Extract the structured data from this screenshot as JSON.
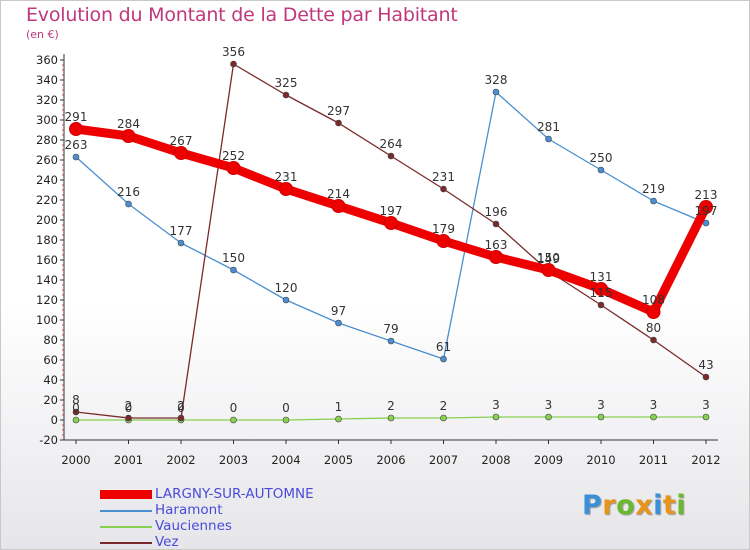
{
  "title": "Evolution du Montant de la Dette par Habitant",
  "subtitle": "(en €)",
  "logo": {
    "letters": [
      "P",
      "r",
      "o",
      "x",
      "i",
      "t",
      "i"
    ],
    "colors": [
      "#3a8fd8",
      "#e8941a",
      "#6ab82e",
      "#e8941a",
      "#3a8fd8",
      "#e8941a",
      "#6ab82e"
    ]
  },
  "chart_data": {
    "type": "line",
    "title": "Evolution du Montant de la Dette par Habitant",
    "ylabel": "(en €)",
    "xlabel": "",
    "ylim": [
      -20,
      360
    ],
    "ytick_step": 20,
    "grid": false,
    "x": [
      "2000",
      "2001",
      "2002",
      "2003",
      "2004",
      "2005",
      "2006",
      "2007",
      "2008",
      "2009",
      "2010",
      "2011",
      "2012"
    ],
    "series": [
      {
        "name": "LARGNY-SUR-AUTOMNE",
        "color": "#ee0000",
        "thick": true,
        "values": [
          291,
          284,
          267,
          252,
          231,
          214,
          197,
          179,
          163,
          150,
          131,
          108,
          213
        ],
        "labels": [
          "291",
          "284",
          "267",
          "252",
          "231",
          "214",
          "197",
          "179",
          "163",
          "150",
          "131",
          "108",
          "213"
        ]
      },
      {
        "name": "Haramont",
        "color": "#4a8fd0",
        "thick": false,
        "values": [
          263,
          216,
          177,
          150,
          120,
          97,
          79,
          61,
          328,
          281,
          250,
          219,
          197
        ],
        "labels": [
          "263",
          "216",
          "177",
          "150",
          "120",
          "97",
          "79",
          "61",
          "328",
          "281",
          "250",
          "219",
          "197"
        ]
      },
      {
        "name": "Vauciennes",
        "color": "#88d050",
        "thick": false,
        "values": [
          0,
          0,
          0,
          0,
          0,
          1,
          2,
          2,
          3,
          3,
          3,
          3,
          3
        ],
        "labels": [
          "0",
          "0",
          "0",
          "0",
          "0",
          "1",
          "2",
          "2",
          "3",
          "3",
          "3",
          "3",
          "3"
        ]
      },
      {
        "name": "Vez",
        "color": "#7a2a2a",
        "thick": false,
        "values": [
          8,
          2,
          2,
          356,
          325,
          297,
          264,
          231,
          196,
          149,
          115,
          80,
          43
        ],
        "labels": [
          "8",
          "2",
          "2",
          "356",
          "325",
          "297",
          "264",
          "231",
          "196",
          "149",
          "115",
          "80",
          "43"
        ]
      }
    ]
  }
}
